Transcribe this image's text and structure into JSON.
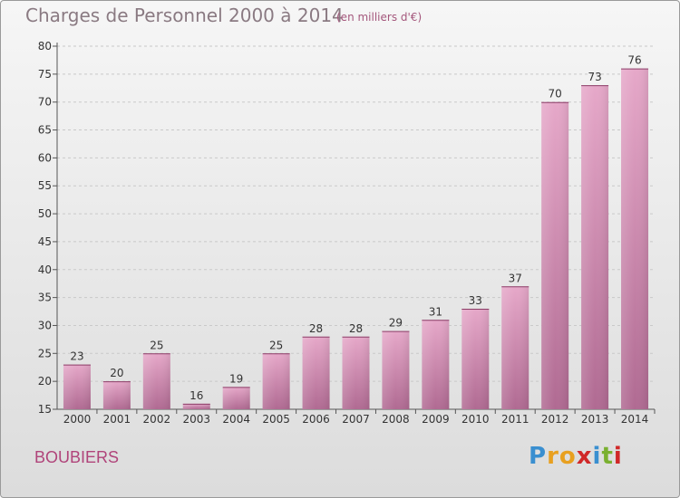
{
  "header": {
    "title": "Charges de Personnel 2000 à 2014",
    "subtitle": "(en milliers d'€)"
  },
  "footer": {
    "commune": "BOUBIERS",
    "logo": [
      "P",
      "r",
      "o",
      "x",
      "i",
      "t",
      "i"
    ],
    "logo_colors": [
      "#3a8fd0",
      "#e8a020",
      "#e8a020",
      "#d02828",
      "#3a8fd0",
      "#7ab030",
      "#d02828"
    ]
  },
  "chart_data": {
    "type": "bar",
    "categories": [
      "2000",
      "2001",
      "2002",
      "2003",
      "2004",
      "2005",
      "2006",
      "2007",
      "2008",
      "2009",
      "2010",
      "2011",
      "2012",
      "2013",
      "2014"
    ],
    "values": [
      23,
      20,
      25,
      16,
      19,
      25,
      28,
      28,
      29,
      31,
      33,
      37,
      70,
      73,
      76
    ],
    "ylim": [
      15,
      80
    ],
    "yticks": [
      15,
      20,
      25,
      30,
      35,
      40,
      45,
      50,
      55,
      60,
      65,
      70,
      75,
      80
    ],
    "grid": "horizontal dashed",
    "bar_color": "#d47aaa"
  }
}
